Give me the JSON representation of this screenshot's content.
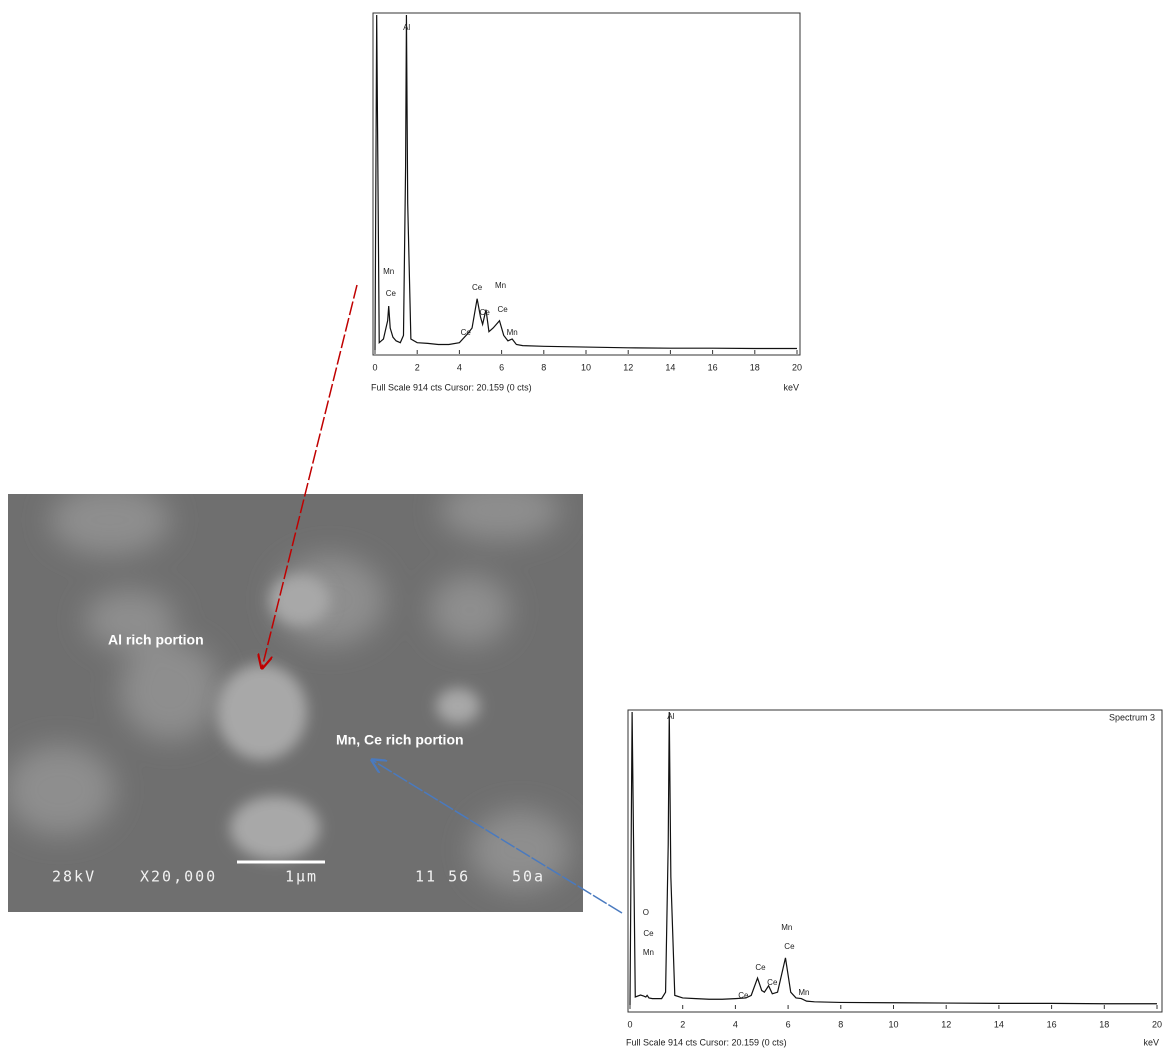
{
  "chart_data": [
    {
      "type": "line",
      "title": null,
      "footer": "Full Scale 914 cts Cursor: 20.159 (0 cts)",
      "xlabel": "keV",
      "x": [
        0,
        0.08,
        0.2,
        0.4,
        0.52,
        0.6,
        0.65,
        0.72,
        0.85,
        1.0,
        1.2,
        1.35,
        1.45,
        1.49,
        1.55,
        1.7,
        2.0,
        2.5,
        3.0,
        3.5,
        4.0,
        4.4,
        4.6,
        4.84,
        5.0,
        5.1,
        5.26,
        5.4,
        5.6,
        5.9,
        6.1,
        6.3,
        6.5,
        6.7,
        7.0,
        8,
        10,
        12,
        14,
        16,
        18,
        20
      ],
      "series": [
        {
          "name": null,
          "color": "#111111",
          "values": [
            0,
            914,
            20,
            30,
            60,
            80,
            120,
            60,
            35,
            25,
            20,
            40,
            500,
            914,
            400,
            30,
            20,
            18,
            15,
            15,
            20,
            45,
            60,
            140,
            90,
            70,
            110,
            50,
            60,
            80,
            40,
            25,
            30,
            15,
            12,
            10,
            8,
            6,
            5,
            5,
            4,
            4
          ]
        }
      ],
      "xlim": [
        0,
        20
      ],
      "ylim": [
        0,
        914
      ],
      "xticks": [
        0,
        2,
        4,
        6,
        8,
        10,
        12,
        14,
        16,
        18,
        20
      ],
      "annotations": [
        {
          "text": "Mn",
          "x": 0.65,
          "y": 213
        },
        {
          "text": "Ce",
          "x": 0.75,
          "y": 153
        },
        {
          "text": "Al",
          "x": 1.5,
          "y": 879
        },
        {
          "text": "Ce",
          "x": 4.3,
          "y": 46
        },
        {
          "text": "Ce",
          "x": 4.84,
          "y": 169
        },
        {
          "text": "Ce",
          "x": 5.2,
          "y": 101
        },
        {
          "text": "Mn",
          "x": 5.95,
          "y": 175
        },
        {
          "text": "Ce",
          "x": 6.05,
          "y": 109
        },
        {
          "text": "Mn",
          "x": 6.5,
          "y": 46
        }
      ]
    },
    {
      "type": "line",
      "title": "Spectrum 3",
      "footer": "Full Scale 914 cts Cursor: 20.159 (0 cts)",
      "xlabel": "keV",
      "x": [
        0,
        0.08,
        0.2,
        0.4,
        0.52,
        0.6,
        0.65,
        0.72,
        0.85,
        1.0,
        1.2,
        1.35,
        1.45,
        1.49,
        1.55,
        1.7,
        2.0,
        2.5,
        3.0,
        3.5,
        4.0,
        4.4,
        4.6,
        4.84,
        5.0,
        5.1,
        5.26,
        5.4,
        5.6,
        5.9,
        6.1,
        6.3,
        6.5,
        6.7,
        7.0,
        8,
        10,
        12,
        14,
        16,
        18,
        20
      ],
      "series": [
        {
          "name": null,
          "color": "#111111",
          "values": [
            0,
            914,
            25,
            31,
            28,
            25,
            30,
            22,
            20,
            20,
            20,
            40,
            500,
            914,
            400,
            30,
            22,
            20,
            18,
            18,
            20,
            22,
            30,
            84,
            45,
            40,
            60,
            35,
            40,
            147,
            40,
            22,
            20,
            12,
            10,
            8,
            7,
            6,
            5,
            5,
            4,
            4
          ]
        }
      ],
      "xlim": [
        0,
        20
      ],
      "ylim": [
        0,
        914
      ],
      "xticks": [
        0,
        2,
        4,
        6,
        8,
        10,
        12,
        14,
        16,
        18,
        20
      ],
      "annotations": [
        {
          "text": "O",
          "x": 0.6,
          "y": 287
        },
        {
          "text": "Ce",
          "x": 0.7,
          "y": 222
        },
        {
          "text": "Mn",
          "x": 0.7,
          "y": 162
        },
        {
          "text": "Al",
          "x": 1.55,
          "y": 899
        },
        {
          "text": "Ce",
          "x": 4.3,
          "y": 28
        },
        {
          "text": "Ce",
          "x": 4.95,
          "y": 115
        },
        {
          "text": "Ce",
          "x": 5.4,
          "y": 69
        },
        {
          "text": "Mn",
          "x": 5.95,
          "y": 240
        },
        {
          "text": "Ce",
          "x": 6.05,
          "y": 181
        },
        {
          "text": "Mn",
          "x": 6.6,
          "y": 37
        }
      ]
    }
  ],
  "sem_image": {
    "label_al": "Al rich portion",
    "label_mnce": "Mn,  Ce rich portion",
    "voltage": "28kV",
    "magnification": "X20,000",
    "scale": "1µm",
    "code": "11 56",
    "suffix": "50a"
  }
}
